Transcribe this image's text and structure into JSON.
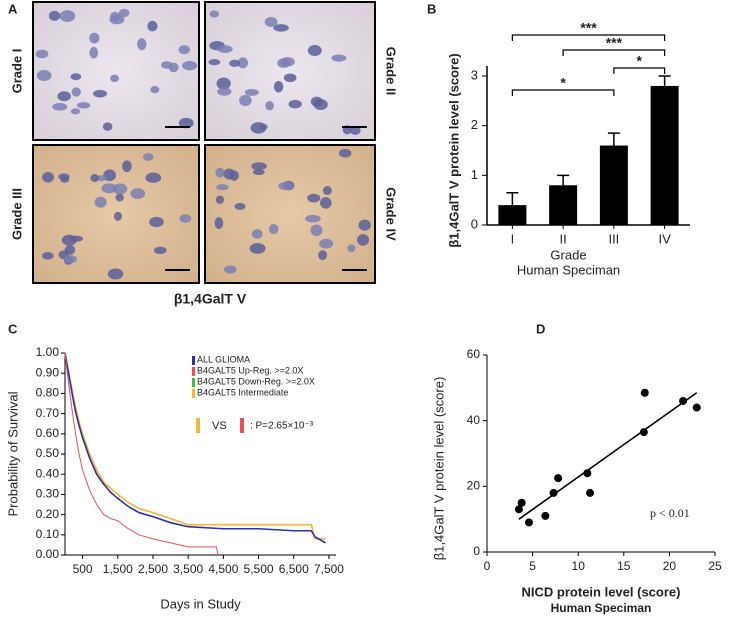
{
  "panel_a": {
    "letter": "A",
    "grades": [
      "Grade I",
      "Grade II",
      "Grade III",
      "Grade IV"
    ],
    "caption": "β1,4GalT V"
  },
  "chart_data": [
    {
      "type": "bar",
      "letter": "B",
      "categories": [
        "I",
        "II",
        "III",
        "IV"
      ],
      "values": [
        0.4,
        0.8,
        1.6,
        2.8
      ],
      "errors": [
        0.25,
        0.2,
        0.25,
        0.2
      ],
      "color": "#000000",
      "ylabel": "β1,4GalT V protein level (score)",
      "xlabel": "Grade",
      "subtitle": "Human Speciman",
      "ylim": [
        0,
        3
      ],
      "yticks": [
        0,
        1,
        2,
        3
      ],
      "significance": [
        {
          "from": 0,
          "to": 3,
          "label": "***"
        },
        {
          "from": 1,
          "to": 3,
          "label": "***"
        },
        {
          "from": 2,
          "to": 3,
          "label": "*"
        },
        {
          "from": 0,
          "to": 2,
          "label": "*"
        }
      ]
    },
    {
      "type": "line",
      "letter": "C",
      "ylabel": "Probability of Survival",
      "xlabel": "Days in Study",
      "xlim": [
        0,
        7700
      ],
      "xticks": [
        500,
        {
          "value": 1500,
          "label": "1,500"
        },
        {
          "value": 2500,
          "label": "2,500"
        },
        {
          "value": 3500,
          "label": "3,500"
        },
        {
          "value": 4500,
          "label": "4,500"
        },
        {
          "value": 5500,
          "label": "5,500"
        },
        {
          "value": 6500,
          "label": "6,500"
        },
        {
          "value": 7500,
          "label": "7,500"
        }
      ],
      "ylim": [
        0,
        1
      ],
      "yticks": [
        {
          "value": 0,
          "label": "0.00"
        },
        {
          "value": 0.1,
          "label": "0.10"
        },
        {
          "value": 0.2,
          "label": "0.20"
        },
        {
          "value": 0.3,
          "label": "0.30"
        },
        {
          "value": 0.4,
          "label": "0.40"
        },
        {
          "value": 0.5,
          "label": "0.50"
        },
        {
          "value": 0.6,
          "label": "0.60"
        },
        {
          "value": 0.7,
          "label": "0.70"
        },
        {
          "value": 0.8,
          "label": "0.80"
        },
        {
          "value": 0.9,
          "label": "0.90"
        },
        {
          "value": 1,
          "label": "1.00"
        }
      ],
      "series": [
        {
          "name": "ALL GLIOMA",
          "color": "#2b2fb0",
          "x": [
            0,
            100,
            200,
            300,
            400,
            500,
            700,
            900,
            1100,
            1300,
            1500,
            1800,
            2100,
            2500,
            3000,
            3500,
            4500,
            5500,
            6500,
            7000,
            7100,
            7400
          ],
          "values": [
            1,
            0.9,
            0.8,
            0.71,
            0.64,
            0.58,
            0.48,
            0.4,
            0.35,
            0.31,
            0.28,
            0.24,
            0.21,
            0.19,
            0.16,
            0.14,
            0.13,
            0.13,
            0.12,
            0.12,
            0.09,
            0.06
          ]
        },
        {
          "name": "B4GALT5 Up-Reg. >=2.0X",
          "color": "#e8505a",
          "x": [
            0,
            100,
            200,
            300,
            400,
            500,
            700,
            900,
            1100,
            1300,
            1500,
            1800,
            2100,
            2500,
            3000,
            3500,
            4300,
            4350
          ],
          "values": [
            1,
            0.85,
            0.72,
            0.6,
            0.5,
            0.42,
            0.32,
            0.25,
            0.2,
            0.18,
            0.17,
            0.13,
            0.1,
            0.08,
            0.06,
            0.04,
            0.04,
            0
          ]
        },
        {
          "name": "B4GALT5 Down-Reg. >=2.0X",
          "color": "#3fbf3f",
          "x": [],
          "values": []
        },
        {
          "name": "B4GALT5 Intermediate",
          "color": "#f2b630",
          "x": [
            0,
            100,
            200,
            300,
            400,
            500,
            700,
            900,
            1100,
            1300,
            1500,
            1800,
            2100,
            2500,
            3000,
            3500,
            4500,
            5500,
            6500,
            7000,
            7100,
            7400
          ],
          "values": [
            1,
            0.91,
            0.82,
            0.73,
            0.66,
            0.6,
            0.5,
            0.42,
            0.36,
            0.33,
            0.3,
            0.26,
            0.23,
            0.21,
            0.18,
            0.15,
            0.15,
            0.15,
            0.15,
            0.15,
            0.08,
            0.08
          ]
        }
      ],
      "vs": "VS",
      "p_text": ":  P=2.65×10⁻³"
    },
    {
      "type": "scatter",
      "letter": "D",
      "xlabel": "NICD protein level (score)",
      "subtitle": "Human Speciman",
      "ylabel": "β1,4GalT V protein level (score)",
      "xlim": [
        0,
        25
      ],
      "xticks": [
        0,
        5,
        10,
        15,
        20,
        25
      ],
      "ylim": [
        0,
        60
      ],
      "yticks": [
        0,
        20,
        40,
        60
      ],
      "x": [
        3.5,
        3.8,
        4.6,
        6.4,
        7.3,
        7.8,
        11,
        11.3,
        17.2,
        17.3,
        21.5,
        23
      ],
      "values": [
        13,
        15,
        9,
        11,
        18,
        22.5,
        24,
        18,
        36.5,
        48.5,
        46,
        44
      ],
      "trend": {
        "x": [
          3.5,
          23
        ],
        "values": [
          10,
          48.5
        ]
      },
      "annotation": "p < 0.01",
      "color": "#000000"
    }
  ]
}
